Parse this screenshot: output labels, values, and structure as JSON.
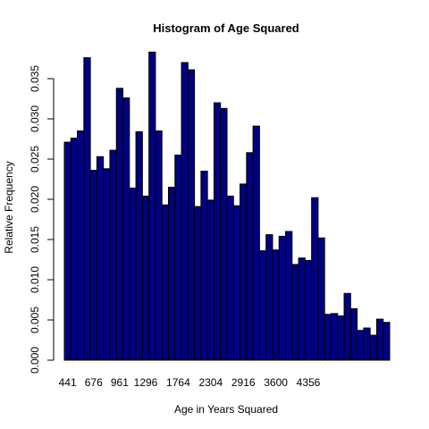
{
  "chart_data": {
    "type": "bar",
    "title": "Histogram of Age Squared",
    "xlabel": "Age in Years Squared",
    "ylabel": "Relative Frequency",
    "ylim": [
      0,
      0.04
    ],
    "y_ticks": [
      "0.000",
      "0.005",
      "0.010",
      "0.015",
      "0.020",
      "0.025",
      "0.030",
      "0.035"
    ],
    "y_tick_values": [
      0.0,
      0.005,
      0.01,
      0.015,
      0.02,
      0.025,
      0.03,
      0.035
    ],
    "x_ticks": [
      "441",
      "676",
      "961",
      "1296",
      "1764",
      "2304",
      "2916",
      "3600",
      "4356"
    ],
    "x_tick_bar_index": [
      0,
      4,
      8,
      12,
      17,
      22,
      27,
      32,
      37
    ],
    "values": [
      0.0271,
      0.0276,
      0.0285,
      0.0376,
      0.0236,
      0.0253,
      0.0238,
      0.0261,
      0.0338,
      0.0326,
      0.0214,
      0.0284,
      0.0204,
      0.0383,
      0.0285,
      0.0193,
      0.0215,
      0.0255,
      0.037,
      0.0361,
      0.0191,
      0.0235,
      0.0199,
      0.032,
      0.0313,
      0.0204,
      0.0192,
      0.0219,
      0.0258,
      0.0291,
      0.0136,
      0.0156,
      0.0137,
      0.0154,
      0.016,
      0.0119,
      0.0127,
      0.0124,
      0.0202,
      0.0152,
      0.0057,
      0.0058,
      0.0055,
      0.0083,
      0.0064,
      0.0037,
      0.004,
      0.0031,
      0.0051,
      0.0047
    ],
    "bar_color": "#000080",
    "grid": false,
    "legend": "none"
  }
}
